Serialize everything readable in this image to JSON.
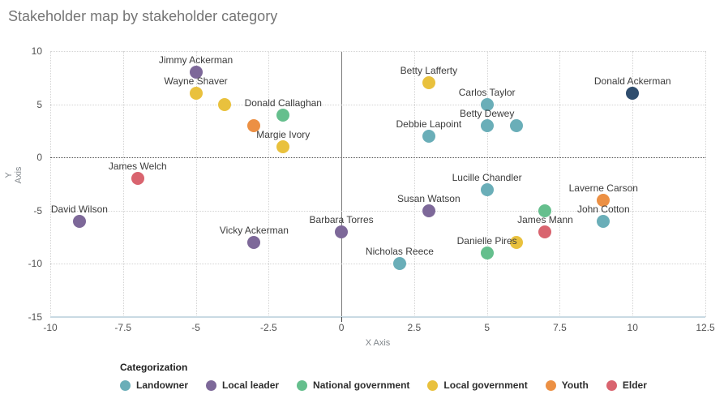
{
  "title": "Stakeholder map by stakeholder category",
  "legend": {
    "title": "Categorization"
  },
  "chart_data": {
    "type": "scatter",
    "title": "Stakeholder map by stakeholder category",
    "xlabel": "X Axis",
    "ylabel": "Y Axis",
    "xlim": [
      -10,
      12.5
    ],
    "ylim": [
      -15,
      10
    ],
    "x_ticks": [
      -10,
      -7.5,
      -5,
      -2.5,
      0,
      2.5,
      5,
      7.5,
      10,
      12.5
    ],
    "y_ticks": [
      10,
      5,
      0,
      -5,
      -10,
      -15
    ],
    "grid": true,
    "legend_position": "bottom",
    "legend_title": "Categorization",
    "categories": [
      {
        "label": "Landowner",
        "color": "#6aaeb8"
      },
      {
        "label": "Local leader",
        "color": "#7d6899"
      },
      {
        "label": "National government",
        "color": "#65bf8d"
      },
      {
        "label": "Local government",
        "color": "#e9c13d"
      },
      {
        "label": "Youth",
        "color": "#ec9044"
      },
      {
        "label": "Elder",
        "color": "#d9646f"
      }
    ],
    "points": [
      {
        "name": "Jimmy Ackerman",
        "x": -5,
        "y": 8,
        "category": "Local leader"
      },
      {
        "name": "Wayne Shaver",
        "x": -5,
        "y": 6,
        "category": "Local government"
      },
      {
        "name": "",
        "x": -4,
        "y": 5,
        "category": "Local government"
      },
      {
        "name": "Donald Callaghan",
        "x": -2,
        "y": 4,
        "category": "National government"
      },
      {
        "name": "",
        "x": -3,
        "y": 3,
        "category": "Youth"
      },
      {
        "name": "Margie Ivory",
        "x": -2,
        "y": 1,
        "category": "Local government"
      },
      {
        "name": "Betty Lafferty",
        "x": 3,
        "y": 7,
        "category": "Local government"
      },
      {
        "name": "Carlos Taylor",
        "x": 5,
        "y": 5,
        "category": "Landowner"
      },
      {
        "name": "Donald Ackerman",
        "x": 10,
        "y": 6,
        "category": "",
        "color": "#2f4d6e"
      },
      {
        "name": "Betty Dewey",
        "x": 5,
        "y": 3,
        "category": "Landowner"
      },
      {
        "name": "",
        "x": 6,
        "y": 3,
        "category": "Landowner"
      },
      {
        "name": "Debbie Lapoint",
        "x": 3,
        "y": 2,
        "category": "Landowner"
      },
      {
        "name": "James Welch",
        "x": -7,
        "y": -2,
        "category": "Elder"
      },
      {
        "name": "Lucille Chandler",
        "x": 5,
        "y": -3,
        "category": "Landowner"
      },
      {
        "name": "Laverne Carson",
        "x": 9,
        "y": -4,
        "category": "Youth"
      },
      {
        "name": "Susan Watson",
        "x": 3,
        "y": -5,
        "category": "Local leader"
      },
      {
        "name": "",
        "x": 7,
        "y": -5,
        "category": "National government"
      },
      {
        "name": "David Wilson",
        "x": -9,
        "y": -6,
        "category": "Local leader"
      },
      {
        "name": "John Cotton",
        "x": 9,
        "y": -6,
        "category": "Landowner"
      },
      {
        "name": "Barbara Torres",
        "x": 0,
        "y": -7,
        "category": "Local leader"
      },
      {
        "name": "James Mann",
        "x": 7,
        "y": -7,
        "category": "Elder"
      },
      {
        "name": "Vicky Ackerman",
        "x": -3,
        "y": -8,
        "category": "Local leader"
      },
      {
        "name": "",
        "x": 6,
        "y": -8,
        "category": "Local government"
      },
      {
        "name": "Danielle Pires",
        "x": 5,
        "y": -9,
        "category": "National government"
      },
      {
        "name": "Nicholas Reece",
        "x": 2,
        "y": -10,
        "category": "Landowner"
      }
    ]
  }
}
